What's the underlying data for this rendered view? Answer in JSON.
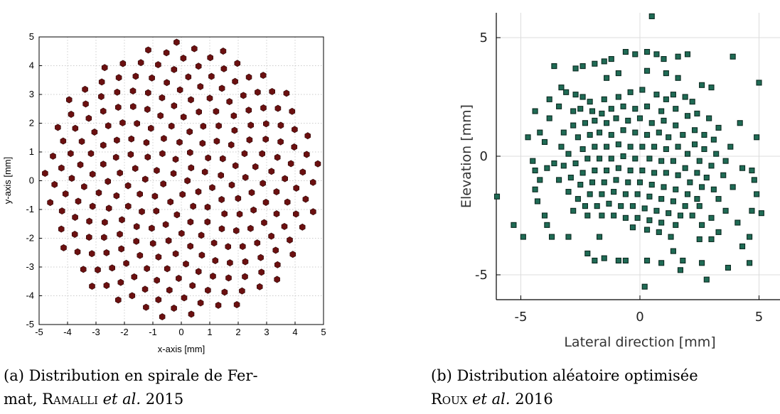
{
  "figures": [
    {
      "caption_label": "(a)",
      "caption_line1": "Distribution en spirale de Fer-",
      "caption_line2_pre": "mat, ",
      "caption_author": "Ramalli",
      "caption_etal": "et al.",
      "caption_year": "2015"
    },
    {
      "caption_label": "(b)",
      "caption_line1": "Distribution aléatoire optimisée",
      "caption_author": "Roux",
      "caption_etal": "et al.",
      "caption_year": "2016"
    }
  ],
  "chart_data": [
    {
      "type": "scatter",
      "marker": "hexagon",
      "marker_color": "#6b1010",
      "xlabel": "x-axis [mm]",
      "ylabel": "y-axis [mm]",
      "xlim": [
        -5,
        5
      ],
      "ylim": [
        -5,
        5
      ],
      "xticks": [
        -5,
        -4,
        -3,
        -2,
        -1,
        0,
        1,
        2,
        3,
        4,
        5
      ],
      "yticks": [
        -5,
        -4,
        -3,
        -2,
        -1,
        0,
        1,
        2,
        3,
        4,
        5
      ],
      "grid": "dotted",
      "distribution": "Fermat spiral",
      "n_points": 256,
      "radius": 4.85
    },
    {
      "type": "scatter",
      "marker": "square",
      "marker_color": "#1f6b55",
      "xlabel": "Lateral direction [mm]",
      "ylabel": "Elevation [mm]",
      "xlim": [
        -6,
        6
      ],
      "ylim": [
        -6,
        6
      ],
      "xticks": [
        -5,
        0,
        5
      ],
      "yticks": [
        5,
        0,
        -5
      ],
      "grid": "on",
      "points": [
        [
          0.5,
          5.9
        ],
        [
          -0.6,
          4.4
        ],
        [
          -0.2,
          4.3
        ],
        [
          0.3,
          4.4
        ],
        [
          0.7,
          4.3
        ],
        [
          1,
          4.1
        ],
        [
          1.6,
          4.2
        ],
        [
          2.0,
          4.3
        ],
        [
          3.9,
          4.2
        ],
        [
          -1.2,
          4.1
        ],
        [
          -1.5,
          4.0
        ],
        [
          -1.9,
          3.9
        ],
        [
          -2.4,
          3.8
        ],
        [
          -2.7,
          3.7
        ],
        [
          -3.6,
          3.8
        ],
        [
          5.0,
          3.1
        ],
        [
          -3.3,
          2.9
        ],
        [
          -3.1,
          2.7
        ],
        [
          -2.7,
          2.6
        ],
        [
          -2.4,
          2.5
        ],
        [
          -1.4,
          3.3
        ],
        [
          -0.9,
          3.5
        ],
        [
          0.3,
          3.6
        ],
        [
          1.1,
          3.5
        ],
        [
          1.6,
          3.3
        ],
        [
          2.6,
          3.0
        ],
        [
          3.0,
          2.9
        ],
        [
          -3.8,
          2.4
        ],
        [
          -3.4,
          2.1
        ],
        [
          -2.1,
          2.3
        ],
        [
          -1.5,
          2.4
        ],
        [
          -0.9,
          2.5
        ],
        [
          -0.4,
          2.7
        ],
        [
          0.1,
          2.8
        ],
        [
          0.7,
          2.6
        ],
        [
          1.1,
          2.4
        ],
        [
          1.4,
          2.6
        ],
        [
          1.9,
          2.5
        ],
        [
          2.2,
          2.3
        ],
        [
          -4.4,
          1.9
        ],
        [
          -3.8,
          1.6
        ],
        [
          -2.8,
          1.9
        ],
        [
          -2.5,
          2.0
        ],
        [
          -2.0,
          1.9
        ],
        [
          -1.6,
          1.8
        ],
        [
          -1.2,
          2.0
        ],
        [
          -0.7,
          2.1
        ],
        [
          -0.2,
          2.0
        ],
        [
          0.3,
          2.1
        ],
        [
          0.9,
          1.9
        ],
        [
          1.5,
          2.0
        ],
        [
          2.0,
          1.7
        ],
        [
          2.4,
          1.8
        ],
        [
          2.9,
          1.6
        ],
        [
          3.3,
          1.2
        ],
        [
          4.2,
          1.4
        ],
        [
          5.9,
          1.1
        ],
        [
          -4.7,
          0.8
        ],
        [
          -4.2,
          1.0
        ],
        [
          -3.2,
          1.0
        ],
        [
          -2.8,
          1.3
        ],
        [
          -2.3,
          1.4
        ],
        [
          -1.9,
          1.5
        ],
        [
          -1.4,
          1.4
        ],
        [
          -1.0,
          1.6
        ],
        [
          -0.5,
          1.5
        ],
        [
          0.0,
          1.6
        ],
        [
          0.5,
          1.4
        ],
        [
          1.0,
          1.5
        ],
        [
          1.5,
          1.3
        ],
        [
          2.3,
          1.1
        ],
        [
          2.7,
          0.9
        ],
        [
          3.1,
          0.7
        ],
        [
          -4.0,
          0.6
        ],
        [
          -3.3,
          0.4
        ],
        [
          -2.6,
          0.8
        ],
        [
          -2.1,
          0.9
        ],
        [
          -1.7,
          1.0
        ],
        [
          -1.2,
          0.9
        ],
        [
          -0.7,
          1.1
        ],
        [
          -0.2,
          1.0
        ],
        [
          0.3,
          0.9
        ],
        [
          0.8,
          1.0
        ],
        [
          1.2,
          0.8
        ],
        [
          1.8,
          0.9
        ],
        [
          2.3,
          0.5
        ],
        [
          2.7,
          0.3
        ],
        [
          3.2,
          0.1
        ],
        [
          3.8,
          0.4
        ],
        [
          4.9,
          0.8
        ],
        [
          -4.5,
          -0.2
        ],
        [
          -3.6,
          -0.3
        ],
        [
          -3.0,
          0.1
        ],
        [
          -2.4,
          0.3
        ],
        [
          -1.9,
          0.4
        ],
        [
          -1.4,
          0.4
        ],
        [
          -0.9,
          0.5
        ],
        [
          -0.4,
          0.4
        ],
        [
          0.1,
          0.4
        ],
        [
          0.6,
          0.4
        ],
        [
          1.1,
          0.3
        ],
        [
          1.6,
          0.4
        ],
        [
          2.0,
          0.1
        ],
        [
          2.5,
          -0.2
        ],
        [
          3.0,
          -0.4
        ],
        [
          3.6,
          -0.2
        ],
        [
          4.3,
          -0.5
        ],
        [
          -4.4,
          -0.6
        ],
        [
          -3.9,
          -0.5
        ],
        [
          -3.2,
          -0.4
        ],
        [
          -2.7,
          -0.3
        ],
        [
          -2.2,
          -0.1
        ],
        [
          -1.7,
          -0.1
        ],
        [
          -1.2,
          -0.1
        ],
        [
          -0.7,
          0.0
        ],
        [
          -0.2,
          -0.1
        ],
        [
          0.4,
          -0.1
        ],
        [
          0.9,
          -0.2
        ],
        [
          1.4,
          -0.2
        ],
        [
          1.9,
          -0.5
        ],
        [
          2.4,
          -0.7
        ],
        [
          2.8,
          -0.9
        ],
        [
          3.5,
          -0.8
        ],
        [
          4.7,
          -0.6
        ],
        [
          5.9,
          -0.6
        ],
        [
          -4.2,
          -1.0
        ],
        [
          -3.4,
          -1.0
        ],
        [
          -2.9,
          -0.9
        ],
        [
          -2.4,
          -0.7
        ],
        [
          -1.9,
          -0.6
        ],
        [
          -1.4,
          -0.6
        ],
        [
          -0.9,
          -0.5
        ],
        [
          -0.4,
          -0.6
        ],
        [
          0.1,
          -0.6
        ],
        [
          0.6,
          -0.7
        ],
        [
          1.1,
          -0.7
        ],
        [
          1.6,
          -0.8
        ],
        [
          2.1,
          -1.1
        ],
        [
          2.6,
          -1.3
        ],
        [
          3.1,
          -1.4
        ],
        [
          3.9,
          -1.3
        ],
        [
          4.8,
          -1.0
        ],
        [
          -4.4,
          -1.4
        ],
        [
          -3.0,
          -1.5
        ],
        [
          -2.5,
          -1.2
        ],
        [
          -2.0,
          -1.1
        ],
        [
          -1.5,
          -1.1
        ],
        [
          -1.0,
          -1.0
        ],
        [
          -0.5,
          -1.1
        ],
        [
          0.0,
          -1.1
        ],
        [
          0.5,
          -1.2
        ],
        [
          1.0,
          -1.3
        ],
        [
          1.5,
          -1.4
        ],
        [
          2.0,
          -1.6
        ],
        [
          2.4,
          -1.8
        ],
        [
          3.3,
          -1.8
        ],
        [
          4.9,
          -1.6
        ],
        [
          -6.0,
          -1.7
        ],
        [
          -4.3,
          -1.9
        ],
        [
          -2.6,
          -1.8
        ],
        [
          -2.1,
          -1.6
        ],
        [
          -1.6,
          -1.6
        ],
        [
          -1.1,
          -1.5
        ],
        [
          -0.6,
          -1.6
        ],
        [
          -0.1,
          -1.6
        ],
        [
          0.4,
          -1.7
        ],
        [
          0.9,
          -1.8
        ],
        [
          1.4,
          -1.9
        ],
        [
          1.9,
          -2.1
        ],
        [
          2.5,
          -2.1
        ],
        [
          3.6,
          -2.3
        ],
        [
          4.7,
          -2.3
        ],
        [
          -4.0,
          -2.5
        ],
        [
          -2.8,
          -2.3
        ],
        [
          -2.3,
          -2.1
        ],
        [
          -1.8,
          -2.1
        ],
        [
          -1.3,
          -2.0
        ],
        [
          -0.8,
          -2.1
        ],
        [
          -0.3,
          -2.1
        ],
        [
          0.2,
          -2.2
        ],
        [
          0.7,
          -2.3
        ],
        [
          1.2,
          -2.4
        ],
        [
          1.7,
          -2.5
        ],
        [
          2.2,
          -2.5
        ],
        [
          3.0,
          -2.6
        ],
        [
          4.1,
          -2.8
        ],
        [
          5.1,
          -2.4
        ],
        [
          -5.3,
          -2.9
        ],
        [
          -3.9,
          -2.9
        ],
        [
          -2.2,
          -2.5
        ],
        [
          -1.6,
          -2.5
        ],
        [
          -1.1,
          -2.5
        ],
        [
          -0.6,
          -2.6
        ],
        [
          -0.1,
          -2.6
        ],
        [
          0.4,
          -2.7
        ],
        [
          0.9,
          -2.8
        ],
        [
          1.5,
          -2.9
        ],
        [
          2.6,
          -2.9
        ],
        [
          3.3,
          -3.2
        ],
        [
          4.6,
          -3.4
        ],
        [
          -4.9,
          -3.4
        ],
        [
          -3.7,
          -3.4
        ],
        [
          -3.0,
          -3.4
        ],
        [
          -1.7,
          -3.4
        ],
        [
          -0.3,
          -3.0
        ],
        [
          0.3,
          -3.1
        ],
        [
          0.8,
          -3.2
        ],
        [
          1.3,
          -3.4
        ],
        [
          2.5,
          -3.5
        ],
        [
          3.0,
          -3.5
        ],
        [
          4.3,
          -3.8
        ],
        [
          4.6,
          -4.5
        ],
        [
          -2.2,
          -4.1
        ],
        [
          -1.9,
          -4.4
        ],
        [
          -1.5,
          -4.3
        ],
        [
          -0.9,
          -4.4
        ],
        [
          -0.6,
          -4.4
        ],
        [
          0.3,
          -4.4
        ],
        [
          0.9,
          -4.5
        ],
        [
          1.4,
          -4.0
        ],
        [
          1.8,
          -4.4
        ],
        [
          2.6,
          -4.5
        ],
        [
          3.7,
          -4.7
        ],
        [
          1.7,
          -4.8
        ],
        [
          2.8,
          -5.2
        ],
        [
          0.2,
          -5.5
        ]
      ]
    }
  ]
}
